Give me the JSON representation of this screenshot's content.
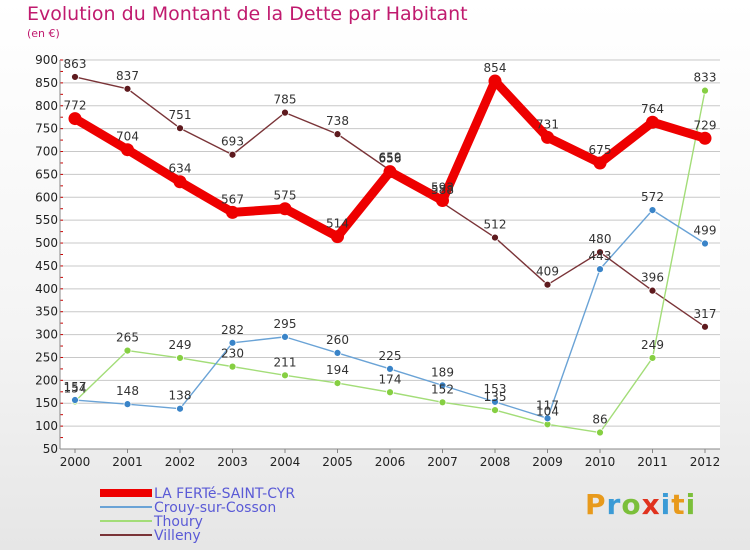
{
  "title": "Evolution du Montant de la Dette par Habitant",
  "subtitle": "(en €)",
  "brand": "Proxiti",
  "colors": {
    "title": "#c01a6e",
    "grid": "#c8c8c8",
    "legend_text": "#5a5ad6"
  },
  "chart_data": {
    "type": "line",
    "title": "Evolution du Montant de la Dette par Habitant",
    "subtitle": "(en €)",
    "xlabel": "",
    "ylabel": "",
    "x": [
      "2000",
      "2001",
      "2002",
      "2003",
      "2004",
      "2005",
      "2006",
      "2007",
      "2008",
      "2009",
      "2010",
      "2011",
      "2012"
    ],
    "ylim": [
      50,
      900
    ],
    "yticks": [
      50,
      100,
      150,
      200,
      250,
      300,
      350,
      400,
      450,
      500,
      550,
      600,
      650,
      700,
      750,
      800,
      850,
      900
    ],
    "grid": "horizontal",
    "legend_position": "bottom-left",
    "series": [
      {
        "name": "LA FERTé-SAINT-CYR",
        "color": "#ee0000",
        "marker_color": "#ee0000",
        "emphasis": "thick",
        "values": [
          772,
          704,
          634,
          567,
          575,
          514,
          656,
          593,
          854,
          731,
          675,
          764,
          729
        ]
      },
      {
        "name": "Crouy-sur-Cosson",
        "color": "#6aa3d6",
        "marker_color": "#3a84c8",
        "values": [
          157,
          148,
          138,
          282,
          295,
          260,
          225,
          189,
          153,
          117,
          443,
          572,
          499
        ]
      },
      {
        "name": "Thoury",
        "color": "#a3dd78",
        "marker_color": "#86cf42",
        "values": [
          154,
          265,
          249,
          230,
          211,
          194,
          174,
          152,
          135,
          104,
          86,
          249,
          833
        ]
      },
      {
        "name": "Villeny",
        "color": "#7a3438",
        "marker_color": "#5e1a1e",
        "values": [
          863,
          837,
          751,
          693,
          785,
          738,
          659,
          588,
          512,
          409,
          480,
          396,
          317
        ]
      }
    ]
  }
}
